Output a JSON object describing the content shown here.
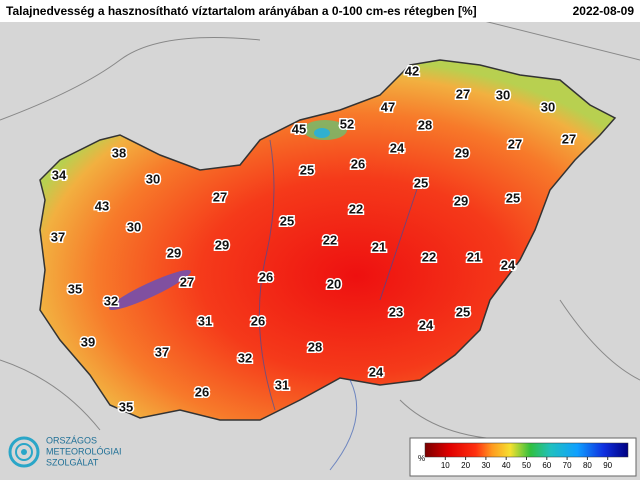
{
  "header": {
    "title": "Talajnedvesség a hasznosítható víztartalom arányában a 0-100 cm-es rétegben [%]",
    "date": "2022-08-09"
  },
  "map": {
    "labels": [
      42,
      27,
      30,
      30,
      47,
      45,
      52,
      28,
      27,
      27,
      38,
      24,
      29,
      26,
      25,
      34,
      30,
      25,
      27,
      29,
      25,
      43,
      22,
      25,
      30,
      37,
      22,
      21,
      29,
      29,
      22,
      21,
      24,
      26,
      27,
      20,
      35,
      32,
      23,
      25,
      24,
      31,
      26,
      39,
      37,
      28,
      32,
      24,
      31,
      26,
      35
    ]
  },
  "legend": {
    "unit": "%",
    "ticks": [
      10,
      20,
      30,
      40,
      50,
      60,
      70,
      80,
      90
    ]
  },
  "logo": {
    "lines": [
      "ORSZÁGOS",
      "METEOROLÓGIAI",
      "SZOLGÁLAT"
    ]
  }
}
